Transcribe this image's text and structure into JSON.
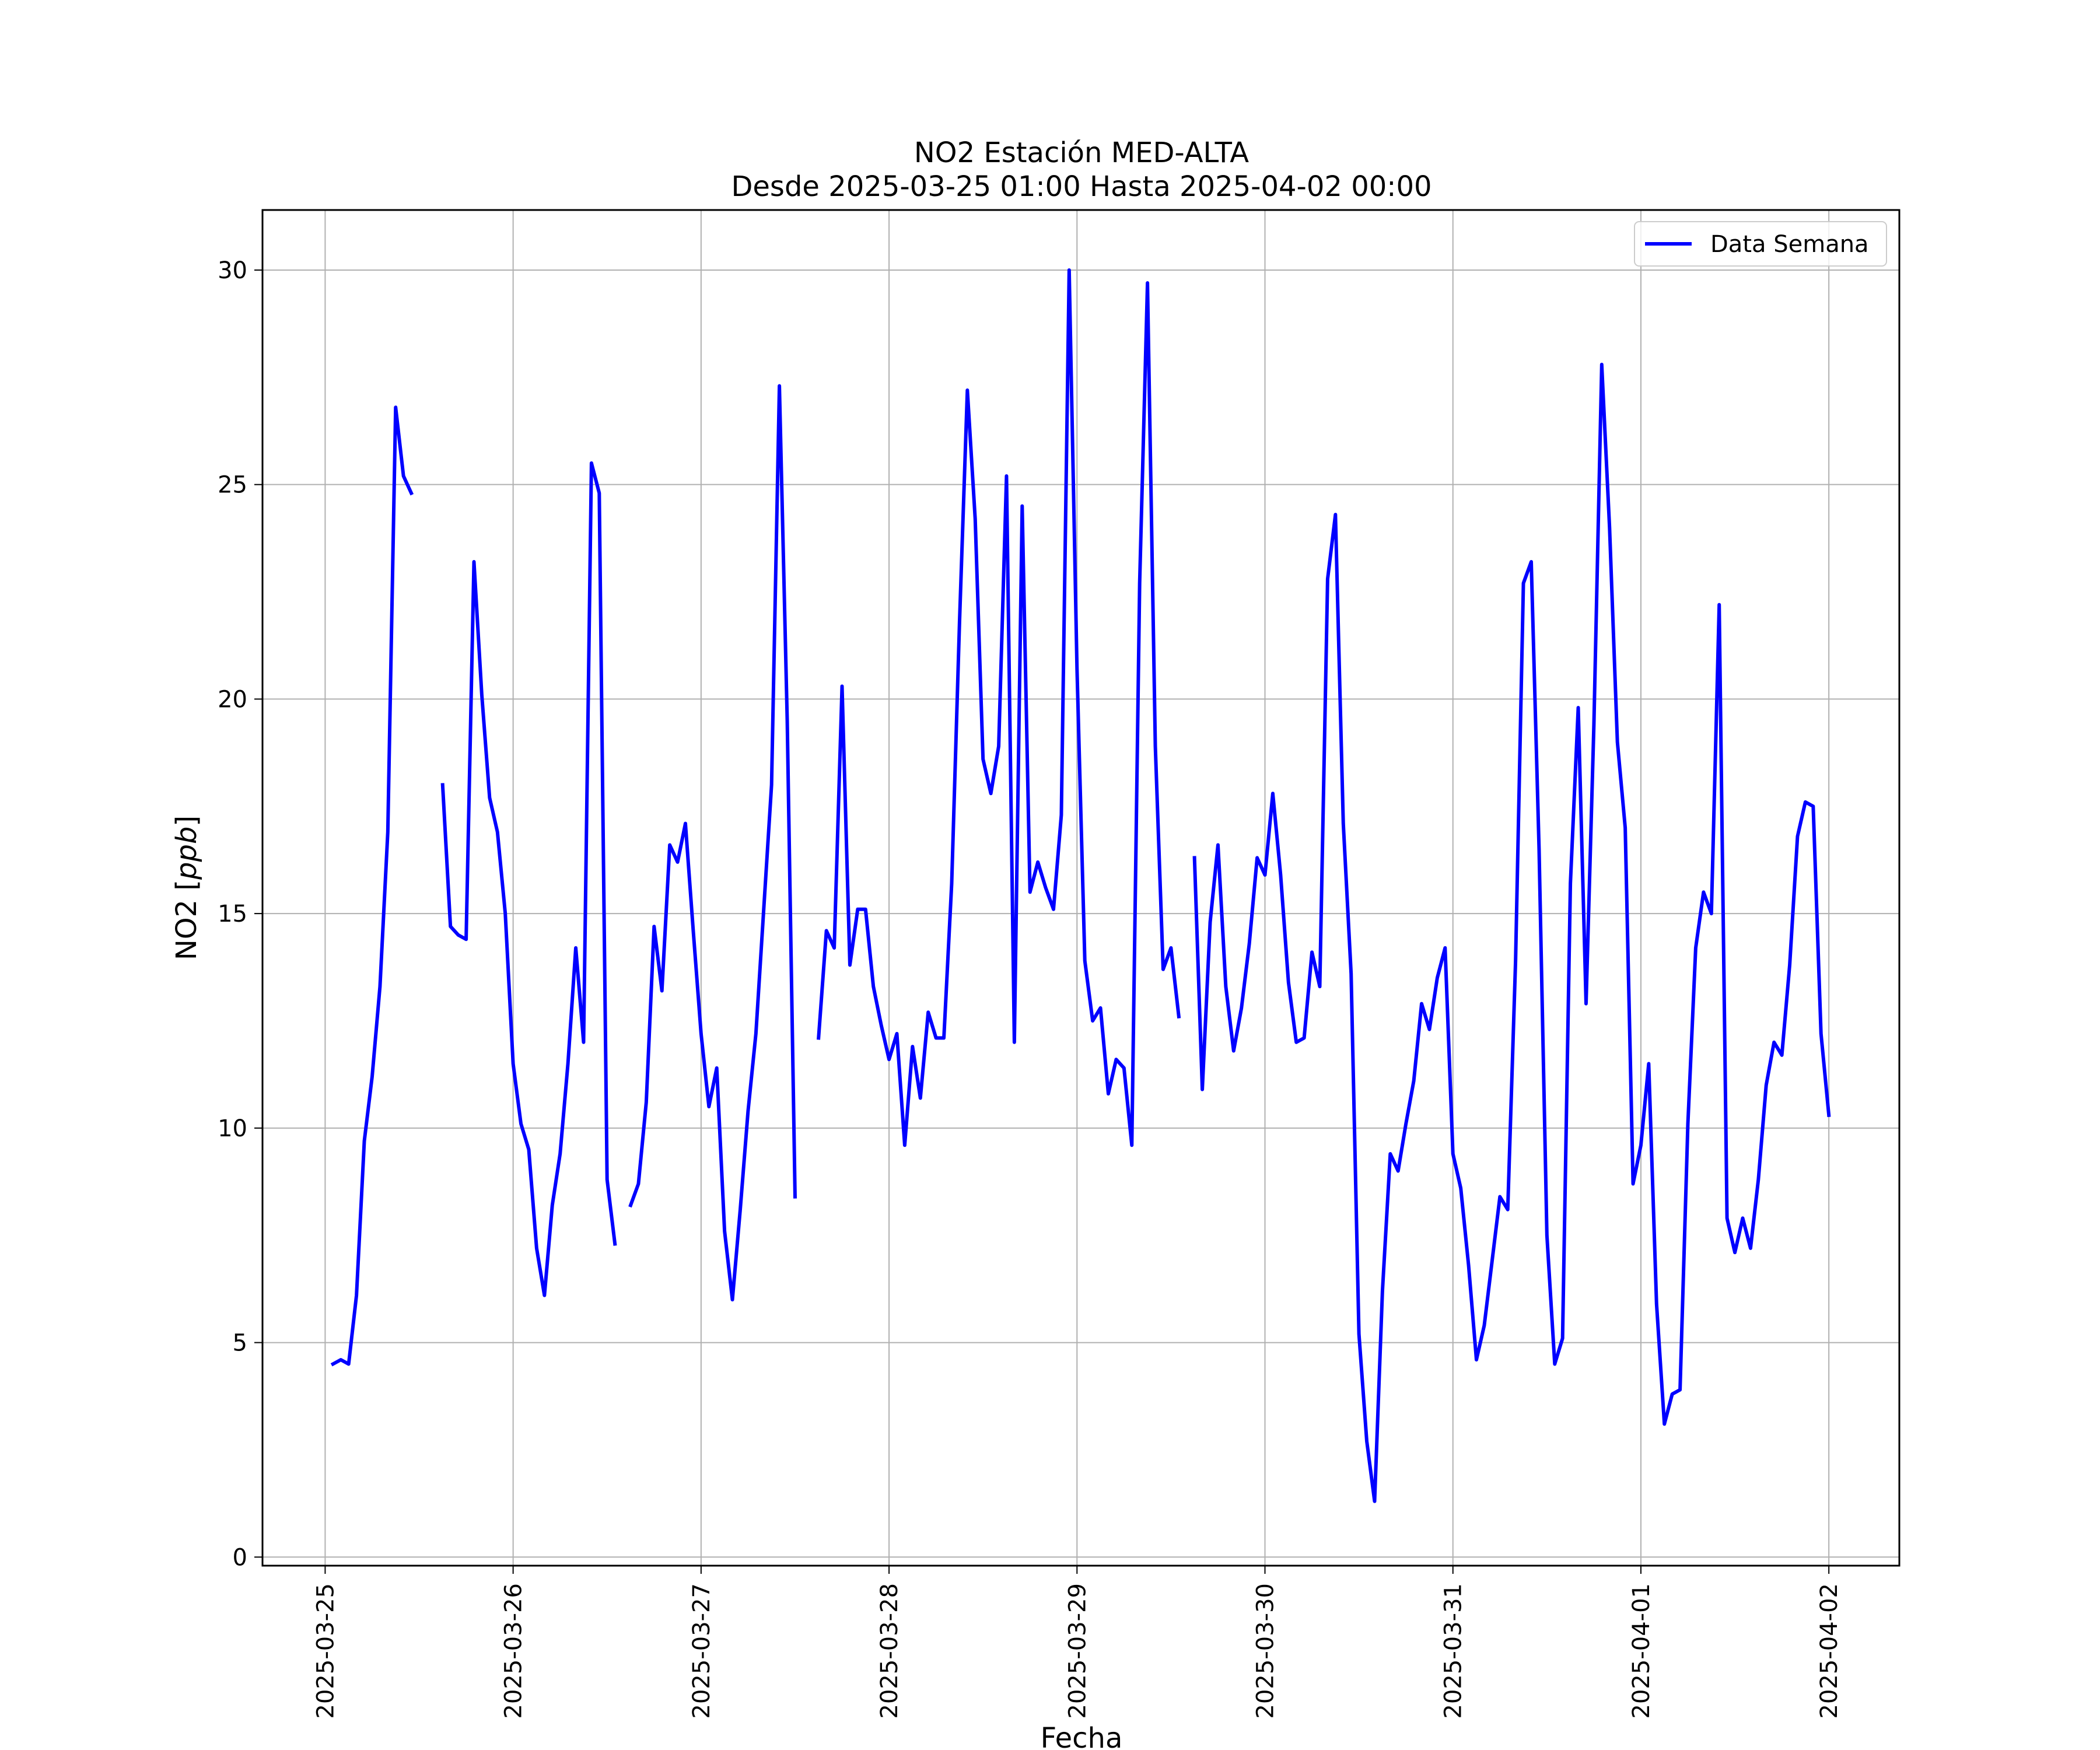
{
  "chart_data": {
    "type": "line",
    "title": "NO2 Estación MED-ALTA",
    "subtitle": "Desde 2025-03-25 01:00 Hasta 2025-04-02 00:00",
    "xlabel": "Fecha",
    "ylabel": "NO2 [ppb]",
    "ylabel_prefix": "NO2 [",
    "ylabel_unit": "ppb",
    "ylabel_suffix": "]",
    "xlim": [
      "2025-03-24 16:00",
      "2025-04-02 09:00"
    ],
    "ylim": [
      -0.2,
      31.4
    ],
    "x_ticks": [
      "2025-03-25",
      "2025-03-26",
      "2025-03-27",
      "2025-03-28",
      "2025-03-29",
      "2025-03-30",
      "2025-03-31",
      "2025-04-01",
      "2025-04-02"
    ],
    "y_ticks": [
      0,
      5,
      10,
      15,
      20,
      25,
      30
    ],
    "grid": true,
    "legend_position": "top-right",
    "series": [
      {
        "name": "Data Semana",
        "color": "#0000ff",
        "points": [
          [
            "2025-03-25 01:00",
            4.5
          ],
          [
            "2025-03-25 02:00",
            4.6
          ],
          [
            "2025-03-25 03:00",
            4.5
          ],
          [
            "2025-03-25 04:00",
            6.1
          ],
          [
            "2025-03-25 05:00",
            9.7
          ],
          [
            "2025-03-25 06:00",
            11.2
          ],
          [
            "2025-03-25 07:00",
            13.3
          ],
          [
            "2025-03-25 08:00",
            16.9
          ],
          [
            "2025-03-25 09:00",
            26.8
          ],
          [
            "2025-03-25 10:00",
            25.2
          ],
          [
            "2025-03-25 11:00",
            24.8
          ],
          [
            "2025-03-25 12:00",
            null
          ],
          [
            "2025-03-25 13:00",
            null
          ],
          [
            "2025-03-25 14:00",
            null
          ],
          [
            "2025-03-25 15:00",
            18.0
          ],
          [
            "2025-03-25 16:00",
            14.7
          ],
          [
            "2025-03-25 17:00",
            14.5
          ],
          [
            "2025-03-25 18:00",
            14.4
          ],
          [
            "2025-03-25 19:00",
            23.2
          ],
          [
            "2025-03-25 20:00",
            20.1
          ],
          [
            "2025-03-25 21:00",
            17.7
          ],
          [
            "2025-03-25 22:00",
            16.9
          ],
          [
            "2025-03-25 23:00",
            15.0
          ],
          [
            "2025-03-26 00:00",
            11.5
          ],
          [
            "2025-03-26 01:00",
            10.1
          ],
          [
            "2025-03-26 02:00",
            9.5
          ],
          [
            "2025-03-26 03:00",
            7.2
          ],
          [
            "2025-03-26 04:00",
            6.1
          ],
          [
            "2025-03-26 05:00",
            8.2
          ],
          [
            "2025-03-26 06:00",
            9.4
          ],
          [
            "2025-03-26 07:00",
            11.5
          ],
          [
            "2025-03-26 08:00",
            14.2
          ],
          [
            "2025-03-26 09:00",
            12.0
          ],
          [
            "2025-03-26 10:00",
            25.5
          ],
          [
            "2025-03-26 11:00",
            24.8
          ],
          [
            "2025-03-26 12:00",
            8.8
          ],
          [
            "2025-03-26 13:00",
            7.3
          ],
          [
            "2025-03-26 14:00",
            null
          ],
          [
            "2025-03-26 15:00",
            8.2
          ],
          [
            "2025-03-26 16:00",
            8.7
          ],
          [
            "2025-03-26 17:00",
            10.6
          ],
          [
            "2025-03-26 18:00",
            14.7
          ],
          [
            "2025-03-26 19:00",
            13.2
          ],
          [
            "2025-03-26 20:00",
            16.6
          ],
          [
            "2025-03-26 21:00",
            16.2
          ],
          [
            "2025-03-26 22:00",
            17.1
          ],
          [
            "2025-03-26 23:00",
            14.6
          ],
          [
            "2025-03-27 00:00",
            12.2
          ],
          [
            "2025-03-27 01:00",
            10.5
          ],
          [
            "2025-03-27 02:00",
            11.4
          ],
          [
            "2025-03-27 03:00",
            7.6
          ],
          [
            "2025-03-27 04:00",
            6.0
          ],
          [
            "2025-03-27 05:00",
            8.1
          ],
          [
            "2025-03-27 06:00",
            10.4
          ],
          [
            "2025-03-27 07:00",
            12.2
          ],
          [
            "2025-03-27 08:00",
            15.1
          ],
          [
            "2025-03-27 09:00",
            18.0
          ],
          [
            "2025-03-27 10:00",
            27.3
          ],
          [
            "2025-03-27 11:00",
            19.5
          ],
          [
            "2025-03-27 12:00",
            8.4
          ],
          [
            "2025-03-27 13:00",
            null
          ],
          [
            "2025-03-27 14:00",
            null
          ],
          [
            "2025-03-27 15:00",
            12.1
          ],
          [
            "2025-03-27 16:00",
            14.6
          ],
          [
            "2025-03-27 17:00",
            14.2
          ],
          [
            "2025-03-27 18:00",
            20.3
          ],
          [
            "2025-03-27 19:00",
            13.8
          ],
          [
            "2025-03-27 20:00",
            15.1
          ],
          [
            "2025-03-27 21:00",
            15.1
          ],
          [
            "2025-03-27 22:00",
            13.3
          ],
          [
            "2025-03-27 23:00",
            12.4
          ],
          [
            "2025-03-28 00:00",
            11.6
          ],
          [
            "2025-03-28 01:00",
            12.2
          ],
          [
            "2025-03-28 02:00",
            9.6
          ],
          [
            "2025-03-28 03:00",
            11.9
          ],
          [
            "2025-03-28 04:00",
            10.7
          ],
          [
            "2025-03-28 05:00",
            12.7
          ],
          [
            "2025-03-28 06:00",
            12.1
          ],
          [
            "2025-03-28 07:00",
            12.1
          ],
          [
            "2025-03-28 08:00",
            15.7
          ],
          [
            "2025-03-28 09:00",
            21.8
          ],
          [
            "2025-03-28 10:00",
            27.2
          ],
          [
            "2025-03-28 11:00",
            24.2
          ],
          [
            "2025-03-28 12:00",
            18.6
          ],
          [
            "2025-03-28 13:00",
            17.8
          ],
          [
            "2025-03-28 14:00",
            18.9
          ],
          [
            "2025-03-28 15:00",
            25.2
          ],
          [
            "2025-03-28 16:00",
            12.0
          ],
          [
            "2025-03-28 17:00",
            24.5
          ],
          [
            "2025-03-28 18:00",
            15.5
          ],
          [
            "2025-03-28 19:00",
            16.2
          ],
          [
            "2025-03-28 20:00",
            15.6
          ],
          [
            "2025-03-28 21:00",
            15.1
          ],
          [
            "2025-03-28 22:00",
            17.3
          ],
          [
            "2025-03-28 23:00",
            30.0
          ],
          [
            "2025-03-29 00:00",
            20.7
          ],
          [
            "2025-03-29 01:00",
            13.9
          ],
          [
            "2025-03-29 02:00",
            12.5
          ],
          [
            "2025-03-29 03:00",
            12.8
          ],
          [
            "2025-03-29 04:00",
            10.8
          ],
          [
            "2025-03-29 05:00",
            11.6
          ],
          [
            "2025-03-29 06:00",
            11.4
          ],
          [
            "2025-03-29 07:00",
            9.6
          ],
          [
            "2025-03-29 08:00",
            22.7
          ],
          [
            "2025-03-29 09:00",
            29.7
          ],
          [
            "2025-03-29 10:00",
            18.9
          ],
          [
            "2025-03-29 11:00",
            13.7
          ],
          [
            "2025-03-29 12:00",
            14.2
          ],
          [
            "2025-03-29 13:00",
            12.6
          ],
          [
            "2025-03-29 14:00",
            null
          ],
          [
            "2025-03-29 15:00",
            16.3
          ],
          [
            "2025-03-29 16:00",
            10.9
          ],
          [
            "2025-03-29 17:00",
            14.8
          ],
          [
            "2025-03-29 18:00",
            16.6
          ],
          [
            "2025-03-29 19:00",
            13.3
          ],
          [
            "2025-03-29 20:00",
            11.8
          ],
          [
            "2025-03-29 21:00",
            12.8
          ],
          [
            "2025-03-29 22:00",
            14.3
          ],
          [
            "2025-03-29 23:00",
            16.3
          ],
          [
            "2025-03-30 00:00",
            15.9
          ],
          [
            "2025-03-30 01:00",
            17.8
          ],
          [
            "2025-03-30 02:00",
            15.9
          ],
          [
            "2025-03-30 03:00",
            13.4
          ],
          [
            "2025-03-30 04:00",
            12.0
          ],
          [
            "2025-03-30 05:00",
            12.1
          ],
          [
            "2025-03-30 06:00",
            14.1
          ],
          [
            "2025-03-30 07:00",
            13.3
          ],
          [
            "2025-03-30 08:00",
            22.8
          ],
          [
            "2025-03-30 09:00",
            24.3
          ],
          [
            "2025-03-30 10:00",
            17.1
          ],
          [
            "2025-03-30 11:00",
            13.6
          ],
          [
            "2025-03-30 12:00",
            5.2
          ],
          [
            "2025-03-30 13:00",
            2.7
          ],
          [
            "2025-03-30 14:00",
            1.3
          ],
          [
            "2025-03-30 15:00",
            6.2
          ],
          [
            "2025-03-30 16:00",
            9.4
          ],
          [
            "2025-03-30 17:00",
            9.0
          ],
          [
            "2025-03-30 18:00",
            10.1
          ],
          [
            "2025-03-30 19:00",
            11.1
          ],
          [
            "2025-03-30 20:00",
            12.9
          ],
          [
            "2025-03-30 21:00",
            12.3
          ],
          [
            "2025-03-30 22:00",
            13.5
          ],
          [
            "2025-03-30 23:00",
            14.2
          ],
          [
            "2025-03-31 00:00",
            9.4
          ],
          [
            "2025-03-31 01:00",
            8.6
          ],
          [
            "2025-03-31 02:00",
            6.8
          ],
          [
            "2025-03-31 03:00",
            4.6
          ],
          [
            "2025-03-31 04:00",
            5.4
          ],
          [
            "2025-03-31 05:00",
            6.9
          ],
          [
            "2025-03-31 06:00",
            8.4
          ],
          [
            "2025-03-31 07:00",
            8.1
          ],
          [
            "2025-03-31 08:00",
            13.9
          ],
          [
            "2025-03-31 09:00",
            22.7
          ],
          [
            "2025-03-31 10:00",
            23.2
          ],
          [
            "2025-03-31 11:00",
            16.5
          ],
          [
            "2025-03-31 12:00",
            7.5
          ],
          [
            "2025-03-31 13:00",
            4.5
          ],
          [
            "2025-03-31 14:00",
            5.1
          ],
          [
            "2025-03-31 15:00",
            15.7
          ],
          [
            "2025-03-31 16:00",
            19.8
          ],
          [
            "2025-03-31 17:00",
            12.9
          ],
          [
            "2025-03-31 18:00",
            19.4
          ],
          [
            "2025-03-31 19:00",
            27.8
          ],
          [
            "2025-03-31 20:00",
            24.0
          ],
          [
            "2025-03-31 21:00",
            19.0
          ],
          [
            "2025-03-31 22:00",
            17.0
          ],
          [
            "2025-03-31 23:00",
            8.7
          ],
          [
            "2025-04-01 00:00",
            9.6
          ],
          [
            "2025-04-01 01:00",
            11.5
          ],
          [
            "2025-04-01 02:00",
            5.9
          ],
          [
            "2025-04-01 03:00",
            3.1
          ],
          [
            "2025-04-01 04:00",
            3.8
          ],
          [
            "2025-04-01 05:00",
            3.9
          ],
          [
            "2025-04-01 06:00",
            10.1
          ],
          [
            "2025-04-01 07:00",
            14.2
          ],
          [
            "2025-04-01 08:00",
            15.5
          ],
          [
            "2025-04-01 09:00",
            15.0
          ],
          [
            "2025-04-01 10:00",
            22.2
          ],
          [
            "2025-04-01 11:00",
            7.9
          ],
          [
            "2025-04-01 12:00",
            7.1
          ],
          [
            "2025-04-01 13:00",
            7.9
          ],
          [
            "2025-04-01 14:00",
            7.2
          ],
          [
            "2025-04-01 15:00",
            8.8
          ],
          [
            "2025-04-01 16:00",
            11.0
          ],
          [
            "2025-04-01 17:00",
            12.0
          ],
          [
            "2025-04-01 18:00",
            11.7
          ],
          [
            "2025-04-01 19:00",
            13.8
          ],
          [
            "2025-04-01 20:00",
            16.8
          ],
          [
            "2025-04-01 21:00",
            17.6
          ],
          [
            "2025-04-01 22:00",
            17.5
          ],
          [
            "2025-04-01 23:00",
            12.2
          ],
          [
            "2025-04-02 00:00",
            10.3
          ]
        ]
      }
    ]
  }
}
